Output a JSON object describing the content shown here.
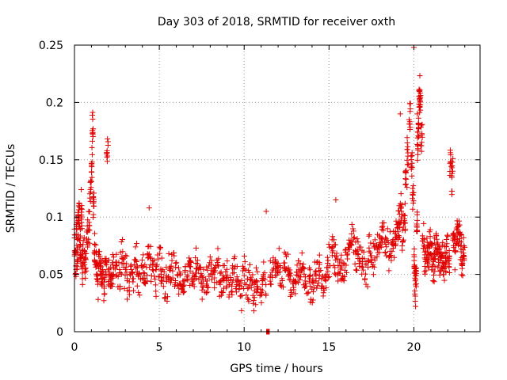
{
  "chart_data": {
    "type": "scatter",
    "title": "Day 303 of 2018, SRMTID for receiver oxth",
    "xlabel": "GPS time / hours",
    "ylabel": "SRMTID / TECUs",
    "xlim": [
      0,
      23.9
    ],
    "ylim": [
      0,
      0.25
    ],
    "x_ticks": [
      0,
      5,
      10,
      15,
      20
    ],
    "x_tick_labels": [
      "0",
      "5",
      "10",
      "15",
      "20"
    ],
    "y_ticks": [
      0,
      0.05,
      0.1,
      0.15,
      0.2,
      0.25
    ],
    "y_tick_labels": [
      "0",
      "0.05",
      "0.1",
      "0.15",
      "0.2",
      "0.25"
    ],
    "grid": true,
    "marker": "plus",
    "colors": {
      "points": "#e00000",
      "grid": "#a0a0a0",
      "axes": "#000000"
    },
    "series": [
      {
        "values_x": [
          0.0,
          0.05,
          0.1,
          0.15,
          0.2,
          0.25,
          0.3,
          0.35,
          0.4,
          0.45,
          0.5,
          0.6,
          0.7,
          0.8,
          0.9,
          1.0,
          1.05,
          1.1,
          1.15,
          1.2,
          1.3,
          1.4,
          1.5,
          1.6,
          1.7,
          1.8,
          1.9,
          2.0,
          2.1,
          2.2,
          2.3,
          2.5,
          2.7,
          2.9,
          3.1,
          3.3,
          3.5,
          3.7,
          3.9,
          4.1,
          4.3,
          4.5,
          4.7,
          4.9,
          5.1,
          5.3,
          5.5,
          5.7,
          5.9,
          6.1,
          6.3,
          6.5,
          6.7,
          6.9,
          7.1,
          7.3,
          7.5,
          7.7,
          7.9,
          8.1,
          8.3,
          8.5,
          8.7,
          8.9,
          9.1,
          9.3,
          9.5,
          9.7,
          9.9,
          10.1,
          10.3,
          10.5,
          10.7,
          10.9,
          11.1,
          11.3,
          11.5,
          11.7,
          11.9,
          12.1,
          12.3,
          12.5,
          12.7,
          12.9,
          13.1,
          13.3,
          13.5,
          13.7,
          13.9,
          14.1,
          14.3,
          14.5,
          14.7,
          14.9,
          15.1,
          15.3,
          15.5,
          15.7,
          15.9,
          16.1,
          16.3,
          16.5,
          16.7,
          16.9,
          17.1,
          17.3,
          17.5,
          17.7,
          17.9,
          18.1,
          18.3,
          18.5,
          18.7,
          18.9,
          19.0,
          19.1,
          19.2,
          19.3,
          19.4,
          19.5,
          19.6,
          19.7,
          19.8,
          19.9,
          20.0,
          20.05,
          20.1,
          20.15,
          20.2,
          20.25,
          20.3,
          20.35,
          20.4,
          20.5,
          20.6,
          20.7,
          20.8,
          20.9,
          21.0,
          21.1,
          21.2,
          21.3,
          21.4,
          21.5,
          21.6,
          21.7,
          21.8,
          21.9,
          22.0,
          22.1,
          22.2,
          22.3,
          22.4,
          22.5,
          22.6,
          22.7,
          22.8,
          22.9
        ],
        "values_y": [
          0.075,
          0.06,
          0.088,
          0.07,
          0.095,
          0.105,
          0.08,
          0.065,
          0.1,
          0.055,
          0.07,
          0.06,
          0.085,
          0.09,
          0.125,
          0.145,
          0.175,
          0.11,
          0.07,
          0.06,
          0.045,
          0.065,
          0.055,
          0.05,
          0.04,
          0.06,
          0.155,
          0.05,
          0.045,
          0.055,
          0.06,
          0.05,
          0.065,
          0.055,
          0.04,
          0.05,
          0.06,
          0.045,
          0.055,
          0.05,
          0.065,
          0.055,
          0.045,
          0.06,
          0.05,
          0.04,
          0.055,
          0.06,
          0.05,
          0.045,
          0.04,
          0.05,
          0.055,
          0.045,
          0.06,
          0.05,
          0.04,
          0.045,
          0.055,
          0.05,
          0.06,
          0.04,
          0.045,
          0.05,
          0.04,
          0.055,
          0.045,
          0.035,
          0.05,
          0.04,
          0.045,
          0.03,
          0.04,
          0.035,
          0.045,
          0.0,
          0.05,
          0.06,
          0.055,
          0.045,
          0.06,
          0.05,
          0.04,
          0.045,
          0.05,
          0.055,
          0.04,
          0.045,
          0.035,
          0.05,
          0.055,
          0.04,
          0.045,
          0.06,
          0.07,
          0.065,
          0.055,
          0.05,
          0.06,
          0.075,
          0.08,
          0.065,
          0.07,
          0.06,
          0.055,
          0.07,
          0.065,
          0.08,
          0.075,
          0.085,
          0.08,
          0.07,
          0.075,
          0.08,
          0.09,
          0.095,
          0.11,
          0.085,
          0.1,
          0.13,
          0.16,
          0.19,
          0.145,
          0.12,
          0.06,
          0.04,
          0.05,
          0.09,
          0.16,
          0.18,
          0.2,
          0.21,
          0.17,
          0.08,
          0.065,
          0.07,
          0.06,
          0.075,
          0.065,
          0.055,
          0.07,
          0.08,
          0.065,
          0.06,
          0.07,
          0.055,
          0.065,
          0.075,
          0.06,
          0.15,
          0.135,
          0.08,
          0.07,
          0.09,
          0.085,
          0.075,
          0.06,
          0.07
        ],
        "spread": 0.018,
        "samples_per_point": 10,
        "extra_points": [
          {
            "x": 20.0,
            "y": 0.248
          },
          {
            "x": 20.3,
            "y": 0.21
          },
          {
            "x": 20.2,
            "y": 0.19
          },
          {
            "x": 19.2,
            "y": 0.19
          },
          {
            "x": 22.3,
            "y": 0.151
          },
          {
            "x": 1.9,
            "y": 0.155
          },
          {
            "x": 1.1,
            "y": 0.177
          },
          {
            "x": 11.3,
            "y": 0.105
          },
          {
            "x": 20.1,
            "y": 0.022
          },
          {
            "x": 0.4,
            "y": 0.124
          },
          {
            "x": 4.4,
            "y": 0.108
          },
          {
            "x": 15.4,
            "y": 0.115
          }
        ]
      }
    ]
  }
}
